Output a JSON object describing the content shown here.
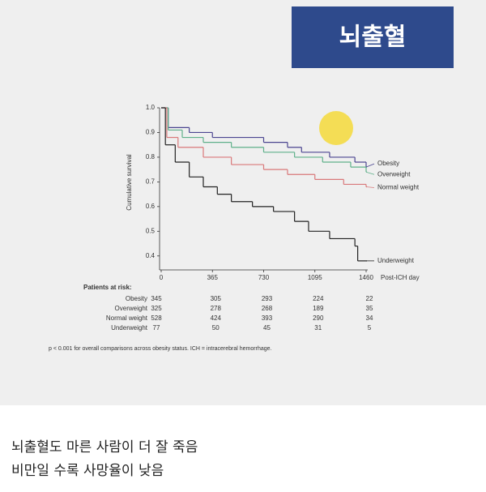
{
  "banner": "뇌출혈",
  "chart_data": {
    "type": "line",
    "step": true,
    "ylabel": "Cumulative survival",
    "xlabel": "Post-ICH day",
    "xlim": [
      0,
      1460
    ],
    "xticks": [
      0,
      365,
      730,
      1095,
      1460
    ],
    "ylim": [
      0.35,
      1.0
    ],
    "yticks": [
      0.4,
      0.5,
      0.6,
      0.7,
      0.8,
      0.9,
      {
        "value": 1.0,
        "label": "1.0"
      }
    ],
    "series": [
      {
        "name": "Obesity",
        "color": "#4b4590",
        "x": [
          0,
          50,
          200,
          365,
          730,
          900,
          1000,
          1200,
          1380,
          1460
        ],
        "values": [
          1.0,
          0.92,
          0.9,
          0.88,
          0.86,
          0.84,
          0.82,
          0.8,
          0.78,
          0.76
        ]
      },
      {
        "name": "Overweight",
        "color": "#5fb08a",
        "x": [
          0,
          50,
          150,
          300,
          500,
          730,
          950,
          1150,
          1350,
          1460
        ],
        "values": [
          1.0,
          0.91,
          0.88,
          0.86,
          0.84,
          0.82,
          0.8,
          0.78,
          0.76,
          0.74
        ]
      },
      {
        "name": "Normal weight",
        "color": "#d9787a",
        "x": [
          0,
          40,
          120,
          300,
          500,
          730,
          900,
          1095,
          1300,
          1460
        ],
        "values": [
          1.0,
          0.88,
          0.84,
          0.8,
          0.77,
          0.75,
          0.73,
          0.71,
          0.69,
          0.68
        ]
      },
      {
        "name": "Underweight",
        "color": "#222222",
        "x": [
          0,
          30,
          100,
          200,
          300,
          400,
          500,
          650,
          800,
          950,
          1050,
          1200,
          1380,
          1400,
          1460
        ],
        "values": [
          1.0,
          0.85,
          0.78,
          0.72,
          0.68,
          0.65,
          0.62,
          0.6,
          0.58,
          0.54,
          0.5,
          0.47,
          0.44,
          0.38,
          0.38
        ]
      }
    ],
    "risk_table": {
      "title": "Patients at risk:",
      "rows": [
        {
          "name": "Obesity",
          "values": [
            345,
            305,
            293,
            224,
            22
          ]
        },
        {
          "name": "Overweight",
          "values": [
            325,
            278,
            268,
            189,
            35
          ]
        },
        {
          "name": "Normal weight",
          "values": [
            528,
            424,
            393,
            290,
            34
          ]
        },
        {
          "name": "Underweight",
          "values": [
            77,
            50,
            45,
            31,
            5
          ]
        }
      ]
    },
    "footnote": "p < 0.001 for overall comparisons across obesity status. ICH = intracerebral hemorrhage."
  },
  "caption": [
    "뇌출혈도 마른 사람이 더 잘 죽음",
    "비만일 수록 사망율이 낮음"
  ]
}
